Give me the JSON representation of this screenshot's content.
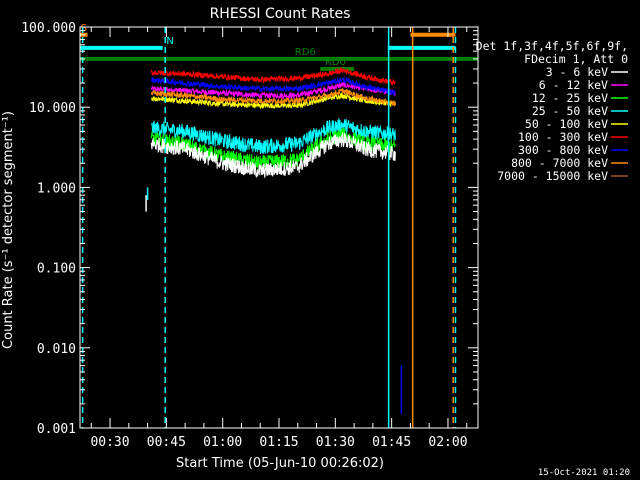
{
  "chart_data": {
    "type": "line",
    "title": "RHESSI Count Rates",
    "xlabel": "Start Time (05-Jun-10 00:26:02)",
    "ylabel": "Count Rate (s⁻¹ detector segment⁻¹)",
    "yscale": "log",
    "ylim": [
      0.001,
      100
    ],
    "xlim_minutes_after_00_00": [
      22,
      128
    ],
    "x_ticks": [
      {
        "t": 30,
        "label": "00:30"
      },
      {
        "t": 45,
        "label": "00:45"
      },
      {
        "t": 60,
        "label": "01:00"
      },
      {
        "t": 75,
        "label": "01:15"
      },
      {
        "t": 90,
        "label": "01:30"
      },
      {
        "t": 105,
        "label": "01:45"
      },
      {
        "t": 120,
        "label": "02:00"
      }
    ],
    "y_ticks": [
      {
        "v": 0.001,
        "label": "0.001"
      },
      {
        "v": 0.01,
        "label": "0.010"
      },
      {
        "v": 0.1,
        "label": "0.100"
      },
      {
        "v": 1,
        "label": "1.000"
      },
      {
        "v": 10,
        "label": "10.000"
      },
      {
        "v": 100,
        "label": "100.000"
      }
    ],
    "legend_header": [
      "Det 1f,3f,4f,5f,6f,9f,",
      "FDecim 1, Att 0"
    ],
    "series": [
      {
        "name": "3 - 6 keV",
        "color": "#ffffff",
        "x": [
          41,
          50,
          60,
          70,
          80,
          88,
          92,
          98,
          106
        ],
        "y": [
          3.5,
          3.0,
          2.0,
          1.6,
          1.8,
          3.5,
          4.0,
          3.0,
          2.6
        ]
      },
      {
        "name": "6 - 12 keV",
        "color": "#ff00ff",
        "x": [
          41,
          50,
          60,
          70,
          80,
          88,
          92,
          98,
          106
        ],
        "y": [
          17,
          16,
          15,
          14,
          14,
          17,
          19,
          17,
          15
        ]
      },
      {
        "name": "12 - 25 keV",
        "color": "#00ff00",
        "x": [
          41,
          50,
          60,
          70,
          80,
          88,
          92,
          98,
          106
        ],
        "y": [
          4.0,
          3.4,
          2.4,
          2.0,
          2.2,
          4.0,
          4.5,
          3.5,
          3.2
        ]
      },
      {
        "name": "25 - 50 keV",
        "color": "#00ffff",
        "x": [
          41,
          50,
          60,
          70,
          80,
          88,
          92,
          98,
          106
        ],
        "y": [
          5.5,
          5.0,
          3.8,
          3.2,
          3.5,
          5.5,
          6.0,
          5.0,
          4.5
        ]
      },
      {
        "name": "50 - 100 keV",
        "color": "#ffff00",
        "x": [
          41,
          50,
          60,
          70,
          80,
          88,
          92,
          98,
          106
        ],
        "y": [
          13,
          12,
          11,
          10.5,
          10.5,
          13,
          14,
          12,
          11
        ]
      },
      {
        "name": "100 - 300 keV",
        "color": "#ff0000",
        "x": [
          41,
          50,
          60,
          70,
          80,
          88,
          92,
          98,
          106
        ],
        "y": [
          27,
          26,
          24,
          22,
          23,
          26,
          29,
          24,
          20
        ]
      },
      {
        "name": "300 - 800 keV",
        "color": "#0000ff",
        "x": [
          41,
          50,
          60,
          70,
          80,
          88,
          92,
          98,
          106
        ],
        "y": [
          22,
          20,
          18,
          17,
          17,
          20,
          22,
          18,
          15
        ]
      },
      {
        "name": "800 - 7000 keV",
        "color": "#ff8c00",
        "x": [
          41,
          50,
          60,
          70,
          80,
          88,
          92,
          98,
          106
        ],
        "y": [
          15,
          14,
          12.5,
          12,
          12,
          14,
          16,
          13,
          11
        ]
      },
      {
        "name": "7000 - 15000 keV",
        "color": "#a0522d",
        "x": [],
        "y": []
      }
    ],
    "flag_bars": [
      {
        "label": "S",
        "color": "#ff8c00",
        "x0": 22,
        "x1": 24,
        "y": 80,
        "label_at": 23
      },
      {
        "label": "N",
        "color": "#00ffff",
        "x0": 22,
        "x1": 44,
        "y": 55,
        "label_at": 46
      },
      {
        "label": "",
        "color": "#00ffff",
        "x0": 104,
        "x1": 122,
        "y": 55,
        "label_at": null
      },
      {
        "label": "",
        "color": "#ff8c00",
        "x0": 110,
        "x1": 122,
        "y": 80,
        "label_at": null
      },
      {
        "label": "",
        "color": "#008000",
        "x0": 22,
        "x1": 128,
        "y": 40,
        "label_at": null
      },
      {
        "label": "RD6",
        "color": "#008000",
        "x0": 86,
        "x1": 88,
        "y": 40,
        "label_at": 82
      },
      {
        "label": "RD0",
        "color": "#008000",
        "x0": 86,
        "x1": 95,
        "y": 30,
        "label_at": 90
      }
    ],
    "vlines": [
      {
        "t": 22.7,
        "color": "#00ffff",
        "style": "dashed"
      },
      {
        "t": 44.7,
        "color": "#00ffff",
        "style": "dashed"
      },
      {
        "t": 104.2,
        "color": "#00ffff",
        "style": "solid"
      },
      {
        "t": 110.6,
        "color": "#ff8c00",
        "style": "solid"
      },
      {
        "t": 121.4,
        "color": "#ff8c00",
        "style": "dashed"
      },
      {
        "t": 122.0,
        "color": "#00ffff",
        "style": "dashed"
      }
    ],
    "spikes": [
      {
        "t": 39.6,
        "color": "#ffffff",
        "y0": 0.5,
        "y1": 0.8
      },
      {
        "t": 40.0,
        "color": "#00ffff",
        "y0": 0.7,
        "y1": 1.0
      },
      {
        "t": 107.6,
        "color": "#0000ff",
        "y0": 0.0015,
        "y1": 0.006
      }
    ],
    "grid": false,
    "legend": "right"
  },
  "footer_timestamp": "15-Oct-2021 01:20"
}
